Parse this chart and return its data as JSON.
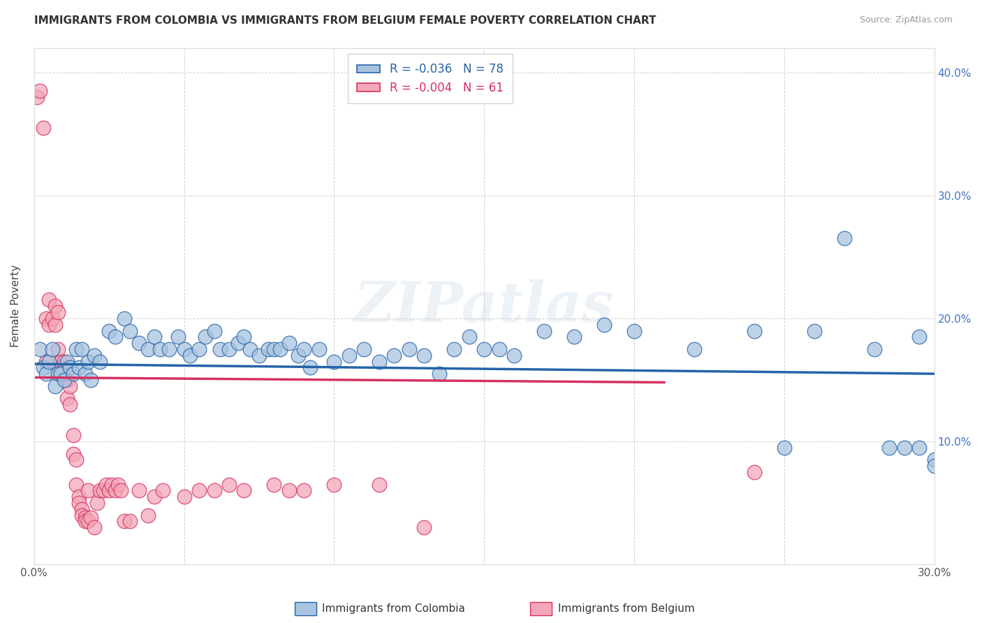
{
  "title": "IMMIGRANTS FROM COLOMBIA VS IMMIGRANTS FROM BELGIUM FEMALE POVERTY CORRELATION CHART",
  "source": "Source: ZipAtlas.com",
  "ylabel": "Female Poverty",
  "xlim": [
    0.0,
    0.3
  ],
  "ylim": [
    0.0,
    0.42
  ],
  "xticks": [
    0.0,
    0.05,
    0.1,
    0.15,
    0.2,
    0.25,
    0.3
  ],
  "xtick_labels": [
    "0.0%",
    "",
    "",
    "",
    "",
    "",
    "30.0%"
  ],
  "yticks": [
    0.0,
    0.1,
    0.2,
    0.3,
    0.4
  ],
  "ytick_labels": [
    "",
    "10.0%",
    "20.0%",
    "30.0%",
    "40.0%"
  ],
  "colombia_color": "#a8c4e0",
  "belgium_color": "#f4a7b9",
  "colombia_line_color": "#2563a8",
  "belgium_line_color": "#d63060",
  "R_colombia": -0.036,
  "N_colombia": 78,
  "R_belgium": -0.004,
  "N_belgium": 61,
  "watermark": "ZIPatlas",
  "legend_label_colombia": "Immigrants from Colombia",
  "legend_label_belgium": "Immigrants from Belgium",
  "colombia_x": [
    0.002,
    0.003,
    0.004,
    0.005,
    0.006,
    0.007,
    0.008,
    0.009,
    0.01,
    0.011,
    0.012,
    0.013,
    0.014,
    0.015,
    0.016,
    0.017,
    0.018,
    0.019,
    0.02,
    0.022,
    0.025,
    0.027,
    0.03,
    0.032,
    0.035,
    0.038,
    0.04,
    0.042,
    0.045,
    0.048,
    0.05,
    0.052,
    0.055,
    0.057,
    0.06,
    0.062,
    0.065,
    0.068,
    0.07,
    0.072,
    0.075,
    0.078,
    0.08,
    0.082,
    0.085,
    0.088,
    0.09,
    0.092,
    0.095,
    0.1,
    0.105,
    0.11,
    0.115,
    0.12,
    0.125,
    0.13,
    0.135,
    0.14,
    0.145,
    0.15,
    0.155,
    0.16,
    0.17,
    0.18,
    0.19,
    0.2,
    0.22,
    0.24,
    0.25,
    0.26,
    0.27,
    0.28,
    0.285,
    0.29,
    0.295,
    0.3,
    0.295,
    0.3
  ],
  "colombia_y": [
    0.175,
    0.16,
    0.155,
    0.165,
    0.175,
    0.145,
    0.155,
    0.155,
    0.15,
    0.165,
    0.16,
    0.155,
    0.175,
    0.16,
    0.175,
    0.155,
    0.165,
    0.15,
    0.17,
    0.165,
    0.19,
    0.185,
    0.2,
    0.19,
    0.18,
    0.175,
    0.185,
    0.175,
    0.175,
    0.185,
    0.175,
    0.17,
    0.175,
    0.185,
    0.19,
    0.175,
    0.175,
    0.18,
    0.185,
    0.175,
    0.17,
    0.175,
    0.175,
    0.175,
    0.18,
    0.17,
    0.175,
    0.16,
    0.175,
    0.165,
    0.17,
    0.175,
    0.165,
    0.17,
    0.175,
    0.17,
    0.155,
    0.175,
    0.185,
    0.175,
    0.175,
    0.17,
    0.19,
    0.185,
    0.195,
    0.19,
    0.175,
    0.19,
    0.095,
    0.19,
    0.265,
    0.175,
    0.095,
    0.095,
    0.185,
    0.085,
    0.095,
    0.08
  ],
  "belgium_x": [
    0.001,
    0.002,
    0.003,
    0.004,
    0.004,
    0.005,
    0.005,
    0.006,
    0.007,
    0.007,
    0.008,
    0.008,
    0.009,
    0.009,
    0.01,
    0.01,
    0.011,
    0.011,
    0.012,
    0.012,
    0.013,
    0.013,
    0.014,
    0.014,
    0.015,
    0.015,
    0.016,
    0.016,
    0.017,
    0.017,
    0.018,
    0.018,
    0.019,
    0.02,
    0.021,
    0.022,
    0.023,
    0.024,
    0.025,
    0.026,
    0.027,
    0.028,
    0.029,
    0.03,
    0.032,
    0.035,
    0.038,
    0.04,
    0.043,
    0.05,
    0.055,
    0.06,
    0.065,
    0.07,
    0.08,
    0.085,
    0.09,
    0.1,
    0.115,
    0.13,
    0.24
  ],
  "belgium_y": [
    0.38,
    0.385,
    0.355,
    0.165,
    0.2,
    0.195,
    0.215,
    0.2,
    0.195,
    0.21,
    0.205,
    0.175,
    0.165,
    0.16,
    0.165,
    0.155,
    0.15,
    0.135,
    0.145,
    0.13,
    0.105,
    0.09,
    0.085,
    0.065,
    0.055,
    0.05,
    0.045,
    0.04,
    0.038,
    0.035,
    0.035,
    0.06,
    0.038,
    0.03,
    0.05,
    0.06,
    0.06,
    0.065,
    0.06,
    0.065,
    0.06,
    0.065,
    0.06,
    0.035,
    0.035,
    0.06,
    0.04,
    0.055,
    0.06,
    0.055,
    0.06,
    0.06,
    0.065,
    0.06,
    0.065,
    0.06,
    0.06,
    0.065,
    0.065,
    0.03,
    0.075
  ],
  "colombia_trend_x": [
    0.0,
    0.3
  ],
  "colombia_trend_y": [
    0.163,
    0.155
  ],
  "belgium_trend_x": [
    0.0,
    0.21
  ],
  "belgium_trend_y": [
    0.152,
    0.148
  ]
}
